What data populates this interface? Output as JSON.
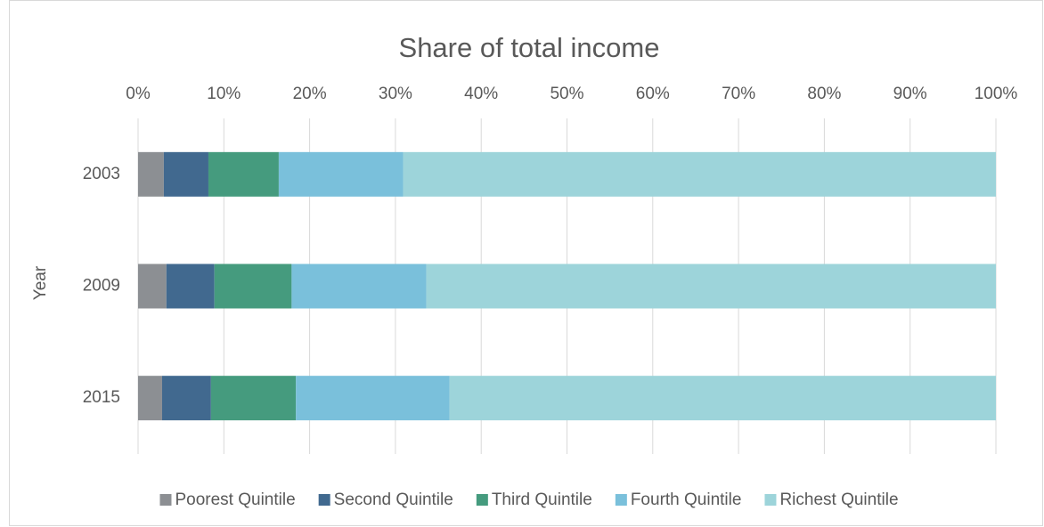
{
  "chart_data": {
    "type": "stacked_barh",
    "title": "Share of total income",
    "y_label": "Year",
    "categories": [
      "2003",
      "2009",
      "2015"
    ],
    "series": [
      {
        "name": "Poorest Quintile",
        "color": "#8c8f93",
        "values": [
          3.0,
          3.3,
          2.8
        ]
      },
      {
        "name": "Second Quintile",
        "color": "#41698f",
        "values": [
          5.2,
          5.6,
          5.7
        ]
      },
      {
        "name": "Third Quintile",
        "color": "#459b7e",
        "values": [
          8.2,
          9.0,
          9.9
        ]
      },
      {
        "name": "Fourth Quintile",
        "color": "#7ac0db",
        "values": [
          14.5,
          15.7,
          17.9
        ]
      },
      {
        "name": "Richest Quintile",
        "color": "#9dd4da",
        "values": [
          69.1,
          66.4,
          63.7
        ]
      }
    ],
    "xlim": [
      0,
      100
    ],
    "xticks": [
      {
        "value": 0,
        "label": "0%"
      },
      {
        "value": 10,
        "label": "10%"
      },
      {
        "value": 20,
        "label": "20%"
      },
      {
        "value": 30,
        "label": "30%"
      },
      {
        "value": 40,
        "label": "40%"
      },
      {
        "value": 50,
        "label": "50%"
      },
      {
        "value": 60,
        "label": "60%"
      },
      {
        "value": 70,
        "label": "70%"
      },
      {
        "value": 80,
        "label": "80%"
      },
      {
        "value": 90,
        "label": "90%"
      },
      {
        "value": 100,
        "label": "100%"
      }
    ],
    "grid": true,
    "legend": "bottom"
  }
}
